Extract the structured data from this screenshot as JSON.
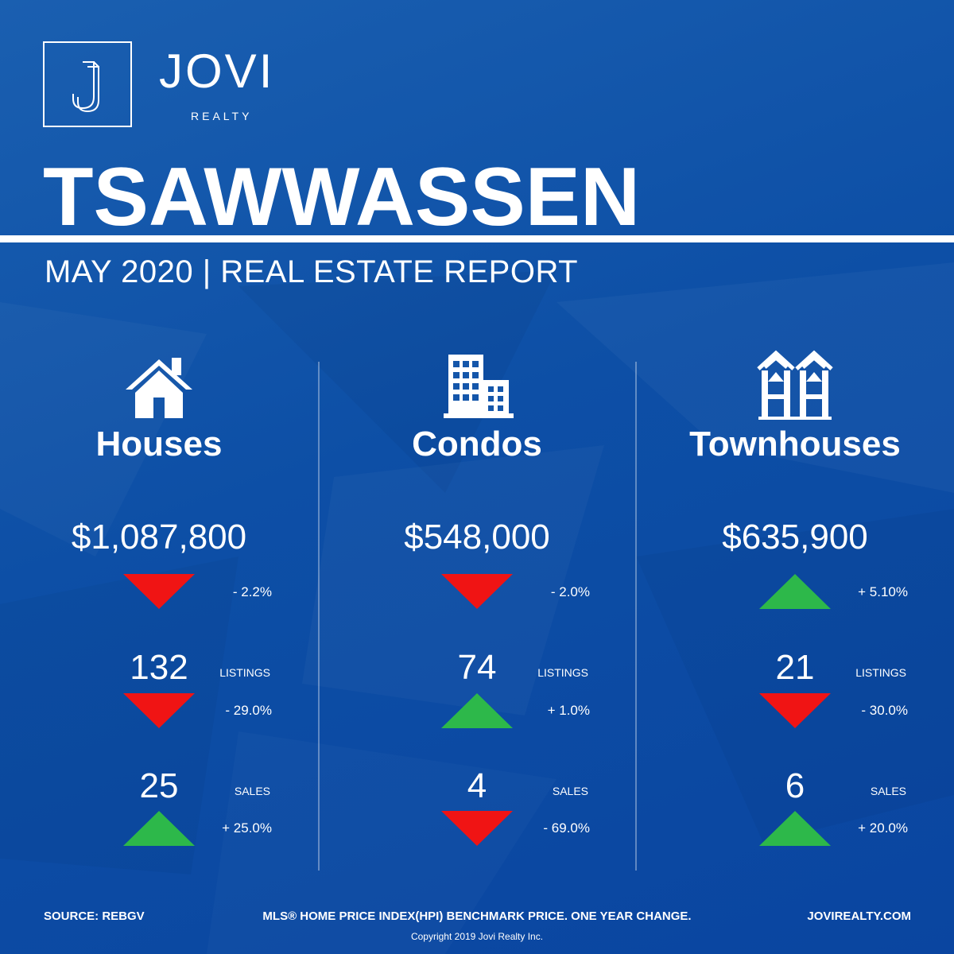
{
  "brand": {
    "name": "JOVI",
    "sub": "REALTY"
  },
  "title": {
    "city": "TSAWWASSEN",
    "report": "MAY 2020 | REAL ESTATE REPORT"
  },
  "colors": {
    "background": "#0d4fa6",
    "up": "#2db84a",
    "down": "#f01414",
    "text": "#ffffff"
  },
  "columns": [
    {
      "icon": "house-icon",
      "title": "Houses",
      "price": "$1,087,800",
      "price_change": {
        "direction": "down",
        "text": "- 2.2%"
      },
      "listings": {
        "value": "132",
        "label": "LISTINGS",
        "direction": "down",
        "change": "- 29.0%"
      },
      "sales": {
        "value": "25",
        "label": "SALES",
        "direction": "up",
        "change": "+ 25.0%"
      }
    },
    {
      "icon": "condo-building-icon",
      "title": "Condos",
      "price": "$548,000",
      "price_change": {
        "direction": "down",
        "text": "- 2.0%"
      },
      "listings": {
        "value": "74",
        "label": "LISTINGS",
        "direction": "up",
        "change": "+ 1.0%"
      },
      "sales": {
        "value": "4",
        "label": "SALES",
        "direction": "down",
        "change": "- 69.0%"
      }
    },
    {
      "icon": "townhouse-icon",
      "title": "Townhouses",
      "price": "$635,900",
      "price_change": {
        "direction": "up",
        "text": "+ 5.10%"
      },
      "listings": {
        "value": "21",
        "label": "LISTINGS",
        "direction": "down",
        "change": "- 30.0%"
      },
      "sales": {
        "value": "6",
        "label": "SALES",
        "direction": "up",
        "change": "+ 20.0%"
      }
    }
  ],
  "footer": {
    "source": "SOURCE:  REBGV",
    "note": "MLS® HOME PRICE INDEX(HPI) BENCHMARK PRICE. ONE YEAR CHANGE.",
    "website": "JOVIREALTY.COM",
    "copyright": "Copyright 2019 Jovi Realty Inc."
  }
}
